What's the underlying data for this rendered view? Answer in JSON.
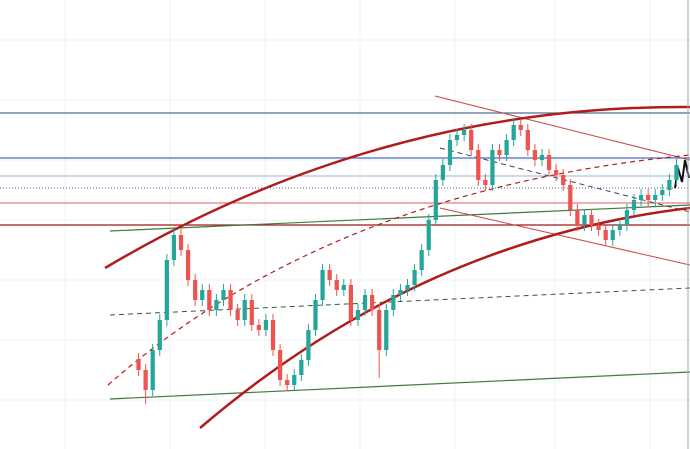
{
  "chart_data": {
    "type": "candlestick",
    "up_color": "#26a69a",
    "down_color": "#ef5350",
    "ylim": [
      0,
      449
    ],
    "open": [
      90,
      79,
      59,
      99,
      129,
      189,
      214,
      199,
      169,
      149,
      159,
      139,
      149,
      159,
      139,
      129,
      149,
      124,
      119,
      129,
      99,
      69,
      64,
      74,
      89,
      119,
      149,
      179,
      169,
      159,
      164,
      129,
      139,
      154,
      139,
      99,
      139,
      154,
      159,
      164,
      179,
      199,
      229,
      269,
      284,
      309,
      314,
      319,
      299,
      269,
      264,
      299,
      294,
      309,
      324,
      319,
      299,
      289,
      294,
      279,
      274,
      264,
      239,
      224,
      234,
      224,
      219,
      209,
      219,
      224,
      239,
      249,
      254,
      249,
      254,
      259,
      269
    ],
    "high": [
      96,
      85,
      105,
      135,
      195,
      220,
      220,
      205,
      175,
      165,
      165,
      155,
      165,
      165,
      145,
      155,
      155,
      130,
      135,
      135,
      105,
      75,
      80,
      95,
      125,
      155,
      185,
      185,
      175,
      170,
      170,
      145,
      160,
      160,
      145,
      145,
      160,
      165,
      170,
      185,
      205,
      235,
      275,
      290,
      315,
      320,
      325,
      325,
      305,
      275,
      305,
      305,
      315,
      330,
      330,
      325,
      305,
      300,
      300,
      285,
      280,
      270,
      245,
      240,
      240,
      230,
      225,
      225,
      230,
      245,
      255,
      260,
      260,
      260,
      265,
      275,
      290
    ],
    "low": [
      73,
      45,
      53,
      93,
      123,
      183,
      193,
      163,
      143,
      143,
      133,
      133,
      143,
      133,
      123,
      123,
      118,
      113,
      113,
      93,
      63,
      58,
      58,
      68,
      83,
      113,
      143,
      163,
      153,
      153,
      123,
      123,
      133,
      133,
      71,
      93,
      133,
      148,
      153,
      158,
      173,
      193,
      223,
      263,
      278,
      303,
      308,
      293,
      263,
      258,
      258,
      288,
      288,
      303,
      313,
      293,
      283,
      283,
      273,
      268,
      258,
      233,
      218,
      218,
      218,
      213,
      203,
      203,
      213,
      218,
      233,
      243,
      243,
      243,
      248,
      253,
      263
    ],
    "close": [
      79,
      59,
      99,
      129,
      189,
      214,
      199,
      169,
      149,
      159,
      139,
      149,
      159,
      139,
      129,
      149,
      124,
      119,
      129,
      99,
      69,
      64,
      74,
      89,
      119,
      149,
      179,
      169,
      159,
      164,
      129,
      139,
      154,
      139,
      99,
      139,
      154,
      159,
      164,
      179,
      199,
      229,
      269,
      284,
      309,
      314,
      319,
      299,
      269,
      264,
      299,
      294,
      309,
      324,
      319,
      299,
      289,
      294,
      279,
      274,
      264,
      239,
      224,
      234,
      224,
      219,
      209,
      219,
      224,
      239,
      249,
      254,
      249,
      254,
      259,
      269,
      284
    ]
  }
}
